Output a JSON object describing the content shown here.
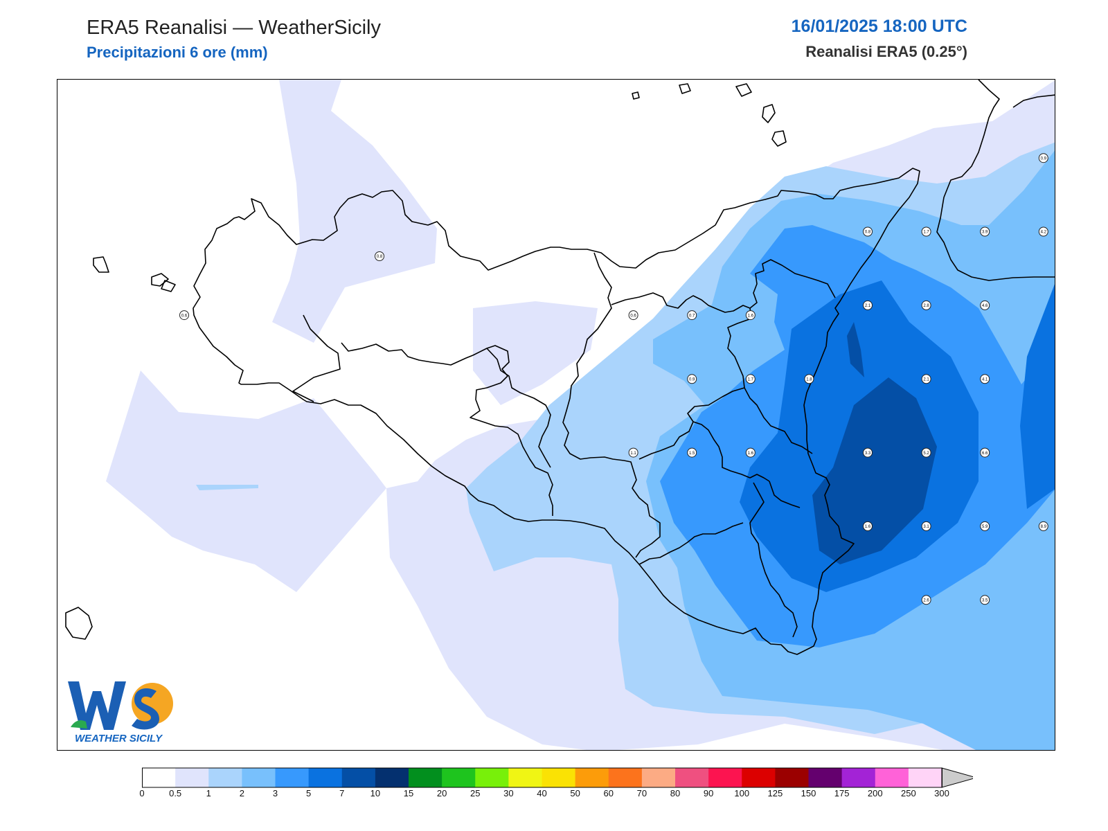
{
  "header": {
    "title": "ERA5 Reanalisi — WeatherSicily",
    "subtitle": "Precipitazioni 6 ore (mm)",
    "datetime": "16/01/2025 18:00 UTC",
    "dataset": "Reanalisi ERA5 (0.25°)"
  },
  "logo": {
    "letters": "WS",
    "text": "WEATHER SICILY"
  },
  "legend": {
    "ticks": [
      "0",
      "0.5",
      "1",
      "2",
      "3",
      "5",
      "7",
      "10",
      "15",
      "20",
      "25",
      "30",
      "40",
      "50",
      "60",
      "70",
      "80",
      "90",
      "100",
      "125",
      "150",
      "175",
      "200",
      "250",
      "300"
    ],
    "colors": [
      "#ffffff",
      "#e0e4fc",
      "#aad4fc",
      "#78c0fc",
      "#3799fd",
      "#0a72e0",
      "#044fa6",
      "#04306f",
      "#028f1e",
      "#1ec41e",
      "#78f00a",
      "#f0f514",
      "#fae204",
      "#fc9c0a",
      "#fc731c",
      "#fcab84",
      "#ef5080",
      "#fc1450",
      "#dc0000",
      "#9b0000",
      "#64006e",
      "#a323d6",
      "#ff62d8",
      "#ffd4f7"
    ]
  },
  "map": {
    "type": "precipitation-map",
    "region": "Sicily",
    "station_values": [
      {
        "value": "0.8",
        "lon": 13.1,
        "lat": 37.9
      },
      {
        "value": "0.6",
        "lon": 12.6,
        "lat": 37.78
      },
      {
        "value": "0.6",
        "lon": 13.75,
        "lat": 37.78
      },
      {
        "value": "0.7",
        "lon": 13.9,
        "lat": 37.78
      },
      {
        "value": "1.6",
        "lon": 14.05,
        "lat": 37.78
      },
      {
        "value": "0.8",
        "lon": 14.35,
        "lat": 37.95
      },
      {
        "value": "1.7",
        "lon": 14.5,
        "lat": 37.95
      },
      {
        "value": "3.9",
        "lon": 14.65,
        "lat": 37.95
      },
      {
        "value": "4.2",
        "lon": 14.8,
        "lat": 37.95
      },
      {
        "value": "0.9",
        "lon": 14.8,
        "lat": 38.1
      },
      {
        "value": "0.5",
        "lon": 14.95,
        "lat": 38.1
      },
      {
        "value": "2.1",
        "lon": 14.35,
        "lat": 37.8
      },
      {
        "value": "2.8",
        "lon": 14.5,
        "lat": 37.8
      },
      {
        "value": "4.6",
        "lon": 14.65,
        "lat": 37.8
      },
      {
        "value": "0.9",
        "lon": 13.9,
        "lat": 37.65
      },
      {
        "value": "1.7",
        "lon": 14.05,
        "lat": 37.65
      },
      {
        "value": "1.8",
        "lon": 14.2,
        "lat": 37.65
      },
      {
        "value": "2.1",
        "lon": 14.5,
        "lat": 37.65
      },
      {
        "value": "4.1",
        "lon": 14.65,
        "lat": 37.65
      },
      {
        "value": "1.1",
        "lon": 13.75,
        "lat": 37.5
      },
      {
        "value": "1.5",
        "lon": 13.9,
        "lat": 37.5
      },
      {
        "value": "1.6",
        "lon": 14.05,
        "lat": 37.5
      },
      {
        "value": "3.3",
        "lon": 14.35,
        "lat": 37.5
      },
      {
        "value": "5.2",
        "lon": 14.5,
        "lat": 37.5
      },
      {
        "value": "6.6",
        "lon": 14.65,
        "lat": 37.5
      },
      {
        "value": "1.6",
        "lon": 14.35,
        "lat": 37.35
      },
      {
        "value": "3.1",
        "lon": 14.5,
        "lat": 37.35
      },
      {
        "value": "5.9",
        "lon": 14.65,
        "lat": 37.35
      },
      {
        "value": "8.9",
        "lon": 14.8,
        "lat": 37.35
      },
      {
        "value": "2.6",
        "lon": 14.5,
        "lat": 37.2
      },
      {
        "value": "3.5",
        "lon": 14.65,
        "lat": 37.2
      }
    ]
  }
}
